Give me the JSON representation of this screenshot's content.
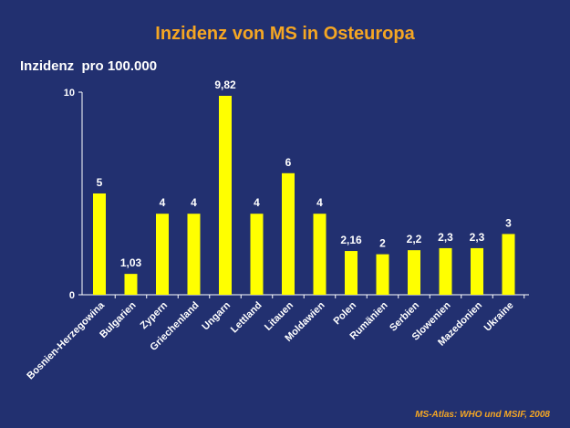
{
  "header": {
    "title": "Inzidenz von MS in Osteuropa",
    "source": "MS-Atlas: WHO und MSIF, 2008"
  },
  "chart_data": {
    "type": "bar",
    "title": "Inzidenz von MS in Osteuropa",
    "ylabel": "Inzidenz  pro 100.000",
    "xlabel": "",
    "ylim": [
      0,
      10
    ],
    "yticks": [
      "0",
      "10"
    ],
    "bar_color": "#ffff00",
    "categories": [
      "Bosnien-Herzegowina",
      "Bulgarien",
      "Zypern",
      "Griechenland",
      "Ungarn",
      "Lettland",
      "Litauen",
      "Moldawien",
      "Polen",
      "Rumänien",
      "Serbien",
      "Slowenien",
      "Mazedonien",
      "Ukraine"
    ],
    "values": [
      5,
      1.03,
      4,
      4,
      9.82,
      4,
      6,
      4,
      2.16,
      2,
      2.2,
      2.3,
      2.3,
      3
    ],
    "value_labels": [
      "5",
      "1,03",
      "4",
      "4",
      "9,82",
      "4",
      "6",
      "4",
      "2,16",
      "2",
      "2,2",
      "2,3",
      "2,3",
      "3"
    ],
    "grid": false,
    "legend": "none"
  }
}
